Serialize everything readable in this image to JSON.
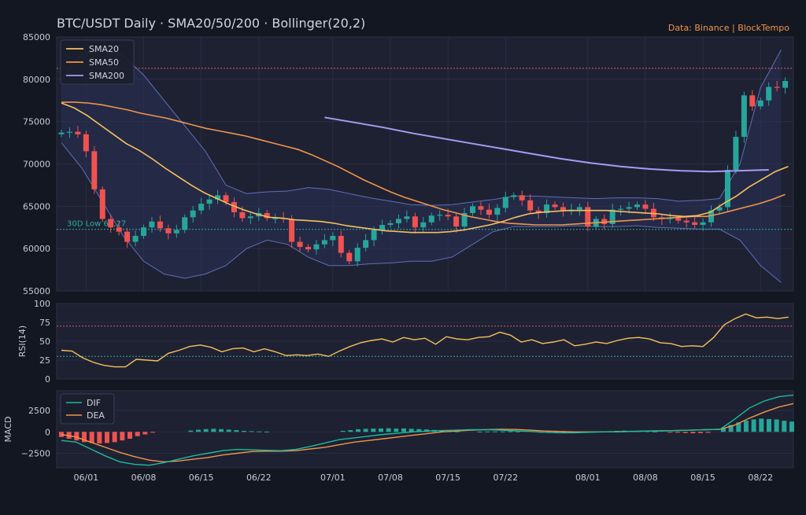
{
  "title": "BTC/USDT Daily  ·  SMA20/50/200  ·  Bollinger(20,2)",
  "source": "Data: Binance  |  BlockTempo",
  "colors": {
    "background": "#131722",
    "panel": "#1e2132",
    "up": "#26a69a",
    "down": "#ef5350",
    "sma20": "#f5c15c",
    "sma50": "#f0954b",
    "sma200": "#a89bf5",
    "bollinger_fill": "#2a3158",
    "bollinger_line": "#5f6fb8",
    "dif": "#1abc9c",
    "dea": "#f0954b",
    "rsi": "#f5c15c",
    "ref_red": "#d06070",
    "ref_teal": "#2ab0a0",
    "text": "#c8cbd2",
    "accent": "#f0954b"
  },
  "chart_data": {
    "type": "candlestick",
    "panels": [
      "price",
      "rsi",
      "macd"
    ],
    "x_tick_labels": [
      "06/01",
      "06/08",
      "06/15",
      "06/22",
      "07/01",
      "07/08",
      "07/15",
      "07/22",
      "08/01",
      "08/08",
      "08/15",
      "08/22"
    ],
    "x_tick_days": [
      3,
      10,
      17,
      24,
      33,
      40,
      47,
      54,
      64,
      71,
      78,
      85
    ],
    "price_axis": {
      "ylim": [
        55000,
        85000
      ],
      "ticks": [
        55000,
        60000,
        65000,
        70000,
        75000,
        80000,
        85000
      ],
      "tick_labels": [
        "55000",
        "60000",
        "65000",
        "70000",
        "75000",
        "80000",
        "85000"
      ]
    },
    "legend": {
      "position": "top-left",
      "entries": [
        "SMA20",
        "SMA50",
        "SMA200"
      ]
    },
    "candles_close": [
      73700,
      73800,
      73500,
      71500,
      67000,
      63500,
      62500,
      62000,
      60800,
      61500,
      62500,
      63200,
      62400,
      61800,
      62200,
      63700,
      64500,
      65300,
      65800,
      66300,
      65500,
      64300,
      63600,
      63800,
      64200,
      63600,
      63600,
      63500,
      60800,
      60200,
      59900,
      60500,
      61000,
      61500,
      59500,
      58500,
      60100,
      61000,
      62200,
      62800,
      63000,
      63500,
      63800,
      62500,
      63100,
      63900,
      64000,
      63800,
      62600,
      64200,
      65000,
      64600,
      64000,
      64800,
      66100,
      66300,
      65700,
      64500,
      64200,
      65200,
      64900,
      64400,
      64600,
      64900,
      62600,
      63500,
      62900,
      64600,
      64700,
      64900,
      65200,
      64700,
      63700,
      63500,
      63600,
      63300,
      63100,
      62800,
      63100,
      64500,
      64900,
      69300,
      73200,
      78100,
      76800,
      77500,
      79100,
      79000,
      79800
    ],
    "sma20": [
      77200,
      76600,
      75700,
      74600,
      73500,
      72400,
      71600,
      70600,
      69500,
      68500,
      67500,
      66600,
      65900,
      65200,
      64600,
      64100,
      63700,
      63600,
      63400,
      63300,
      63200,
      63000,
      62700,
      62500,
      62300,
      62100,
      62000,
      61900,
      61900,
      61900,
      62000,
      62200,
      62500,
      62800,
      63200,
      63700,
      64100,
      64300,
      64400,
      64500,
      64500,
      64500,
      64500,
      64400,
      64300,
      64200,
      64100,
      63900,
      63800,
      63900,
      64300,
      65300,
      66200,
      67300,
      68200,
      69100,
      69700
    ],
    "sma20_start_day": 0,
    "sma20_step_days": 1.578,
    "sma50": [
      77300,
      77300,
      77200,
      77000,
      76700,
      76400,
      76000,
      75700,
      75400,
      75000,
      74600,
      74200,
      73900,
      73600,
      73300,
      72900,
      72500,
      72100,
      71700,
      71100,
      70400,
      69700,
      68900,
      68100,
      67400,
      66700,
      66100,
      65600,
      65100,
      64600,
      64200,
      63800,
      63500,
      63200,
      63000,
      62900,
      62800,
      62800,
      62800,
      62900,
      63000,
      63100,
      63200,
      63300,
      63400,
      63500,
      63600,
      63700,
      63800,
      63800,
      64100,
      64500,
      64900,
      65300,
      65800,
      66400
    ],
    "sma50_start_day": 0,
    "sma50_step_days": 1.6,
    "sma200": [
      75500,
      74900,
      74300,
      73600,
      73000,
      72400,
      71800,
      71200,
      70600,
      70100,
      69700,
      69400,
      69200,
      69100,
      69200,
      69300
    ],
    "sma200_start_day": 32,
    "sma200_step_days": 3.6,
    "bollinger_upper": [
      80000,
      83000,
      83500,
      82800,
      80500,
      77500,
      74500,
      71500,
      67500,
      66500,
      66700,
      66800,
      67200,
      67000,
      66500,
      66000,
      65600,
      65200,
      65100,
      65200,
      65500,
      65800,
      66200,
      66200,
      66100,
      66000,
      65900,
      66000,
      66000,
      65900,
      65600,
      65700,
      65900,
      70000,
      79000,
      83500
    ],
    "bollinger_lower": [
      72500,
      69500,
      65500,
      61500,
      58500,
      57000,
      56500,
      57000,
      58000,
      60000,
      61000,
      60500,
      59000,
      58000,
      58000,
      58200,
      58300,
      58500,
      58500,
      59000,
      60500,
      62000,
      62600,
      62600,
      62600,
      62700,
      62600,
      62600,
      62700,
      62500,
      62400,
      62300,
      62300,
      61000,
      58000,
      56000
    ],
    "bollinger_step_days": 2.5,
    "reference_lines": {
      "high_30d": 81300,
      "low_30d": 62270,
      "low_label": "30D Low 62,27",
      "high_label_fragment": "3"
    },
    "rsi": {
      "label": "RSI(14)",
      "ylim": [
        0,
        100
      ],
      "ticks": [
        0,
        25,
        50,
        75,
        100
      ],
      "levels": [
        70,
        30
      ],
      "values": [
        38,
        37,
        28,
        22,
        18,
        16,
        16,
        26,
        25,
        24,
        34,
        38,
        43,
        45,
        42,
        36,
        40,
        41,
        36,
        40,
        36,
        31,
        32,
        31,
        33,
        30,
        37,
        43,
        48,
        51,
        53,
        49,
        55,
        52,
        54,
        46,
        56,
        53,
        52,
        55,
        56,
        62,
        58,
        49,
        52,
        47,
        49,
        52,
        44,
        46,
        49,
        47,
        51,
        54,
        55,
        53,
        48,
        47,
        43,
        44,
        43,
        55,
        72,
        80,
        86,
        81,
        82,
        80,
        82
      ],
      "step_days": 1.3
    },
    "macd": {
      "label": "MACD",
      "ylim": [
        -4200,
        4800
      ],
      "ticks": [
        -2500,
        0,
        2500
      ],
      "tick_labels": [
        "−2500",
        "0",
        "2500"
      ],
      "legend": [
        "DIF",
        "DEA"
      ],
      "legend_position": "top-left",
      "dif": [
        -1000,
        -1200,
        -2000,
        -2800,
        -3500,
        -3800,
        -3900,
        -3600,
        -3200,
        -2800,
        -2500,
        -2200,
        -2050,
        -2100,
        -2150,
        -2200,
        -2050,
        -1700,
        -1300,
        -900,
        -700,
        -500,
        -300,
        -150,
        0,
        100,
        150,
        200,
        250,
        250,
        200,
        120,
        50,
        -50,
        -100,
        -100,
        -50,
        0,
        0,
        50,
        100,
        120,
        150,
        200,
        250,
        300,
        1500,
        2800,
        3600,
        4100,
        4300
      ],
      "dea": [
        -300,
        -600,
        -1200,
        -1800,
        -2400,
        -2900,
        -3300,
        -3500,
        -3400,
        -3200,
        -3000,
        -2700,
        -2500,
        -2300,
        -2250,
        -2250,
        -2200,
        -2000,
        -1800,
        -1500,
        -1200,
        -1000,
        -800,
        -600,
        -400,
        -200,
        0,
        100,
        200,
        250,
        300,
        280,
        200,
        100,
        50,
        0,
        0,
        0,
        20,
        50,
        100,
        120,
        150,
        200,
        250,
        300,
        800,
        1600,
        2300,
        2900,
        3300
      ],
      "line_step_days": 1.78,
      "histogram": [
        -600,
        -800,
        -1000,
        -1200,
        -1300,
        -1350,
        -1300,
        -1200,
        -1000,
        -800,
        -500,
        -300,
        -100,
        0,
        0,
        0,
        0,
        150,
        250,
        320,
        360,
        320,
        260,
        200,
        120,
        80,
        50,
        30,
        0,
        0,
        0,
        0,
        0,
        0,
        0,
        0,
        0,
        120,
        200,
        300,
        350,
        380,
        400,
        420,
        380,
        400,
        360,
        320,
        280,
        220,
        180,
        100,
        50,
        0,
        0,
        30,
        40,
        50,
        50,
        60,
        50,
        0,
        0,
        -80,
        -120,
        -150,
        -100,
        -80,
        -50,
        -30,
        0,
        50,
        80,
        120,
        150,
        130,
        100,
        70,
        40,
        0,
        -60,
        -100,
        -140,
        -170,
        -150,
        -110,
        0,
        400,
        800,
        1100,
        1300,
        1450,
        1550,
        1500,
        1450,
        1300,
        1200
      ],
      "hist_step_days": 0.925
    }
  }
}
